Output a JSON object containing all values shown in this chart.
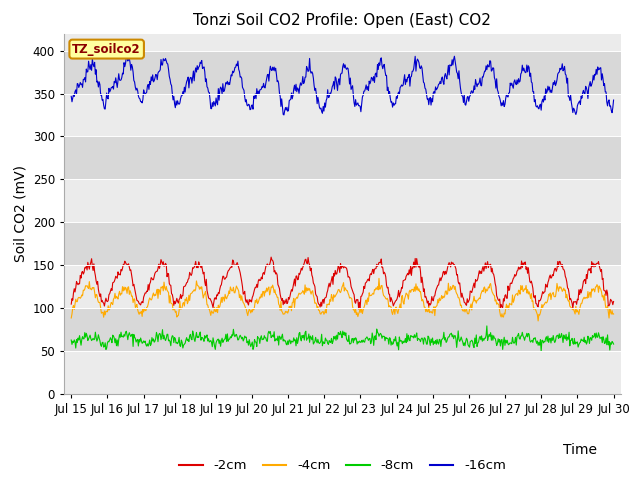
{
  "title": "Tonzi Soil CO2 Profile: Open (East) CO2",
  "xlabel": "Time",
  "ylabel": "Soil CO2 (mV)",
  "ylim": [
    0,
    420
  ],
  "yticks": [
    0,
    50,
    100,
    150,
    200,
    250,
    300,
    350,
    400
  ],
  "label_text": "TZ_soilco2",
  "legend_colors": [
    "#dd0000",
    "#ffaa00",
    "#00cc00",
    "#0000cc"
  ],
  "legend_labels": [
    "-2cm",
    "-4cm",
    "-8cm",
    "-16cm"
  ],
  "bg_color_light": "#ebebeb",
  "bg_color_dark": "#d8d8d8",
  "fig_bg": "#ffffff",
  "title_fontsize": 11,
  "axis_label_fontsize": 10,
  "tick_fontsize": 8.5
}
